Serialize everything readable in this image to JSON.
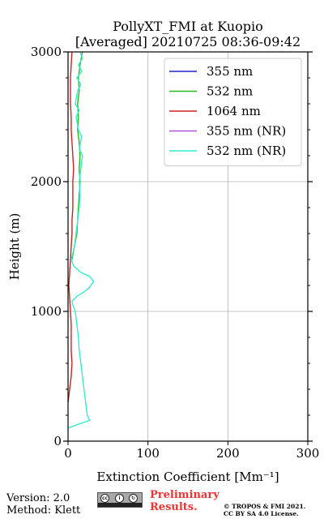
{
  "chart_data": {
    "type": "line",
    "title": "PollyXT_FMI at Kuopio",
    "subtitle": "[Averaged] 20210725 08:36-09:42",
    "xlabel": "Extinction Coefficient [Mm⁻¹]",
    "ylabel": "Height (m)",
    "xlim": [
      0,
      300
    ],
    "ylim": [
      0,
      3000
    ],
    "xticks": [
      "0",
      "100",
      "200",
      "300"
    ],
    "yticks": [
      "0",
      "1000",
      "2000",
      "3000"
    ],
    "grid": true,
    "legend_position": "top-right",
    "series": [
      {
        "name": "355 nm",
        "color": "#2222cc",
        "points": []
      },
      {
        "name": "532 nm",
        "color": "#22bb22",
        "points": [
          [
            5,
            1400
          ],
          [
            8,
            1500
          ],
          [
            11,
            1600
          ],
          [
            12,
            1700
          ],
          [
            13,
            1800
          ],
          [
            14,
            1900
          ],
          [
            15,
            2000
          ],
          [
            14,
            2100
          ],
          [
            15,
            2200
          ],
          [
            14,
            2300
          ],
          [
            12,
            2400
          ],
          [
            13,
            2500
          ],
          [
            12,
            2600
          ],
          [
            14,
            2700
          ],
          [
            13,
            2800
          ],
          [
            15,
            2900
          ],
          [
            18,
            3000
          ]
        ]
      },
      {
        "name": "1064 nm",
        "color": "#cc2222",
        "points": [
          [
            0,
            300
          ],
          [
            2,
            400
          ],
          [
            4,
            500
          ],
          [
            5,
            600
          ],
          [
            4,
            700
          ],
          [
            4,
            800
          ],
          [
            4,
            900
          ],
          [
            3,
            1000
          ],
          [
            2,
            1100
          ],
          [
            1,
            1200
          ],
          [
            2,
            1300
          ],
          [
            3,
            1400
          ],
          [
            4,
            1500
          ],
          [
            5,
            1600
          ],
          [
            5,
            1700
          ],
          [
            6,
            1800
          ],
          [
            6,
            1900
          ],
          [
            6,
            2000
          ],
          [
            7,
            2100
          ],
          [
            6,
            2200
          ],
          [
            5,
            2300
          ],
          [
            4,
            2400
          ],
          [
            4,
            2500
          ],
          [
            3,
            2600
          ],
          [
            3,
            2700
          ],
          [
            3,
            2800
          ],
          [
            4,
            2900
          ],
          [
            5,
            3000
          ]
        ]
      },
      {
        "name": "355 nm (NR)",
        "color": "#aa55dd",
        "points": []
      },
      {
        "name": "532 nm (NR)",
        "color": "#33eecc",
        "points": [
          [
            0,
            100
          ],
          [
            8,
            120
          ],
          [
            27,
            160
          ],
          [
            24,
            200
          ],
          [
            22,
            300
          ],
          [
            20,
            400
          ],
          [
            18,
            500
          ],
          [
            16,
            600
          ],
          [
            14,
            700
          ],
          [
            13,
            800
          ],
          [
            11,
            900
          ],
          [
            9,
            1000
          ],
          [
            6,
            1050
          ],
          [
            5,
            1080
          ],
          [
            12,
            1120
          ],
          [
            20,
            1150
          ],
          [
            26,
            1180
          ],
          [
            32,
            1230
          ],
          [
            27,
            1270
          ],
          [
            16,
            1300
          ],
          [
            7,
            1350
          ],
          [
            4,
            1400
          ],
          [
            8,
            1500
          ],
          [
            10,
            1600
          ],
          [
            12,
            1700
          ],
          [
            14,
            1800
          ],
          [
            15,
            1900
          ],
          [
            14,
            2000
          ],
          [
            16,
            2100
          ],
          [
            18,
            2200
          ],
          [
            14,
            2250
          ],
          [
            17,
            2350
          ],
          [
            13,
            2400
          ],
          [
            10,
            2500
          ],
          [
            14,
            2550
          ],
          [
            9,
            2600
          ],
          [
            12,
            2700
          ],
          [
            16,
            2750
          ],
          [
            11,
            2800
          ],
          [
            17,
            2850
          ],
          [
            13,
            2900
          ],
          [
            18,
            2950
          ],
          [
            15,
            3000
          ]
        ]
      }
    ]
  },
  "footer": {
    "version": "Version: 2.0",
    "method": "Method: Klett",
    "preliminary_line1": "Preliminary",
    "preliminary_line2": "Results.",
    "copyright_line1": "© TROPOS & FMI 2021.",
    "copyright_line2": "CC BY SA 4.0 License."
  },
  "badge": {
    "label": "cc-by-sa-badge",
    "glyphs": [
      "cc",
      "i",
      "↻"
    ]
  }
}
